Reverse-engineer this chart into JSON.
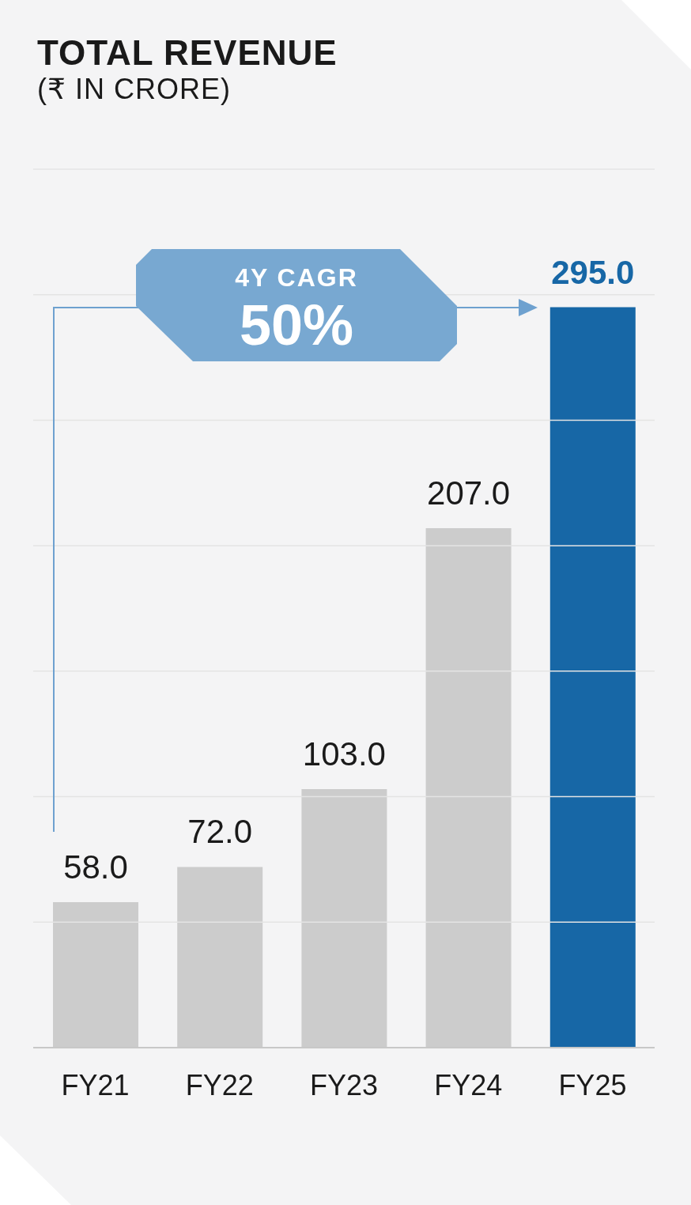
{
  "chart_data": {
    "type": "bar",
    "title": "TOTAL REVENUE",
    "subtitle": "(₹ IN CRORE)",
    "categories": [
      "FY21",
      "FY22",
      "FY23",
      "FY24",
      "FY25"
    ],
    "values": [
      58.0,
      72.0,
      103.0,
      207.0,
      295.0
    ],
    "colors": [
      "#cccccc",
      "#cccccc",
      "#cccccc",
      "#cccccc",
      "#1767a6"
    ],
    "value_labels": [
      "58.0",
      "72.0",
      "103.0",
      "207.0",
      "295.0"
    ],
    "ylim": [
      0,
      350
    ],
    "yticks": [
      {
        "value": 0,
        "label": null
      },
      {
        "value": 50,
        "label": null
      },
      {
        "value": 100,
        "label": null
      },
      {
        "value": 150,
        "label": null
      },
      {
        "value": 200,
        "label": null
      },
      {
        "value": 250,
        "label": null
      },
      {
        "value": 300,
        "label": null
      },
      {
        "value": 350,
        "label": null
      }
    ],
    "grid": "y",
    "tick_labels": "x",
    "annotations": [
      "4Y CAGR",
      "50%"
    ]
  }
}
